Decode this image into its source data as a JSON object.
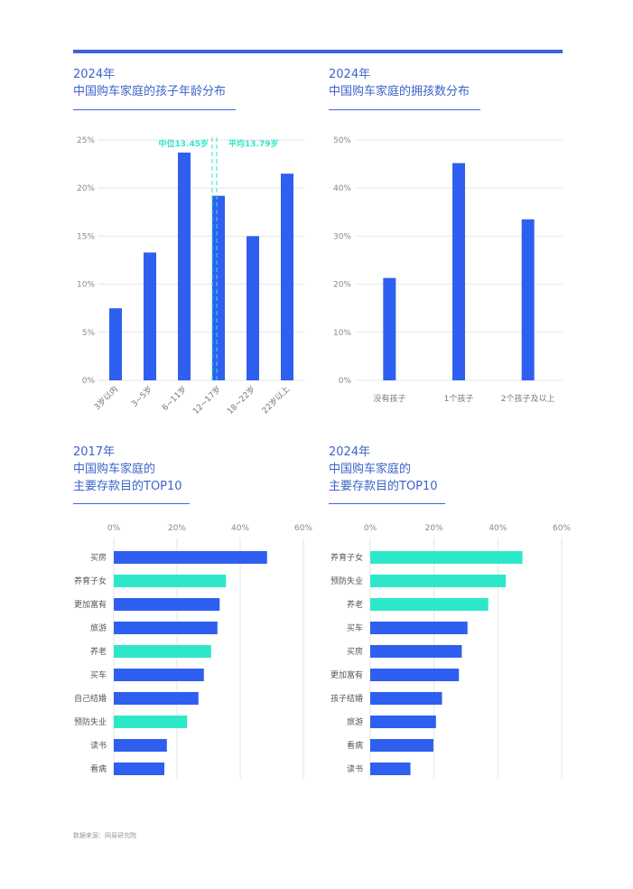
{
  "header": {
    "accent_color": "#3b66e0"
  },
  "colors": {
    "blue": "#2f5ff0",
    "teal": "#2de8c8",
    "grid": "#e6e6e6",
    "axis_text": "#888888",
    "annot": "#2de8c8"
  },
  "chart_data": [
    {
      "id": "age",
      "type": "bar",
      "title_year": "2024年",
      "title": "中国购车家庭的孩子年龄分布",
      "categories": [
        "3岁以内",
        "3~5岁",
        "6~11岁",
        "12~17岁",
        "18~22岁",
        "22岁以上"
      ],
      "values": [
        7.5,
        13.3,
        23.7,
        19.2,
        15.0,
        21.5
      ],
      "ylim": [
        0,
        25
      ],
      "yticks": [
        "0%",
        "5%",
        "10%",
        "15%",
        "20%",
        "25%"
      ],
      "grid": true,
      "annotations": [
        {
          "label": "中位13.45岁",
          "value": 13.45
        },
        {
          "label": "平均13.79岁",
          "value": 13.79
        }
      ]
    },
    {
      "id": "count",
      "type": "bar",
      "title_year": "2024年",
      "title": "中国购车家庭的拥孩数分布",
      "categories": [
        "没有孩子",
        "1个孩子",
        "2个孩子及以上"
      ],
      "values": [
        21.3,
        45.2,
        33.5
      ],
      "ylim": [
        0,
        50
      ],
      "yticks": [
        "0%",
        "10%",
        "20%",
        "30%",
        "40%",
        "50%"
      ],
      "grid": true
    },
    {
      "id": "top2017",
      "type": "bar",
      "orientation": "horizontal",
      "title_year": "2017年",
      "title_line1": "中国购车家庭的",
      "title_line2": "主要存款目的TOP10",
      "categories": [
        "买房",
        "养育子女",
        "更加富有",
        "旅游",
        "养老",
        "买车",
        "自己结婚",
        "预防失业",
        "读书",
        "看病"
      ],
      "values": [
        48.5,
        35.5,
        33.5,
        32.8,
        30.8,
        28.5,
        26.8,
        23.2,
        16.8,
        16.0
      ],
      "highlight": [
        false,
        true,
        false,
        false,
        true,
        false,
        false,
        true,
        false,
        false
      ],
      "xlim": [
        0,
        60
      ],
      "xticks": [
        "0%",
        "20%",
        "40%",
        "60%"
      ]
    },
    {
      "id": "top2024",
      "type": "bar",
      "orientation": "horizontal",
      "title_year": "2024年",
      "title_line1": "中国购车家庭的",
      "title_line2": "主要存款目的TOP10",
      "categories": [
        "养育子女",
        "预防失业",
        "养老",
        "买车",
        "买房",
        "更加富有",
        "孩子结婚",
        "旅游",
        "看病",
        "读书"
      ],
      "values": [
        47.7,
        42.5,
        37.0,
        30.5,
        28.7,
        27.8,
        22.5,
        20.6,
        19.8,
        12.6
      ],
      "highlight": [
        true,
        true,
        true,
        false,
        false,
        false,
        false,
        false,
        false,
        false
      ],
      "xlim": [
        0,
        60
      ],
      "xticks": [
        "0%",
        "20%",
        "40%",
        "60%"
      ]
    }
  ],
  "source": "数据来源：网易研究院"
}
